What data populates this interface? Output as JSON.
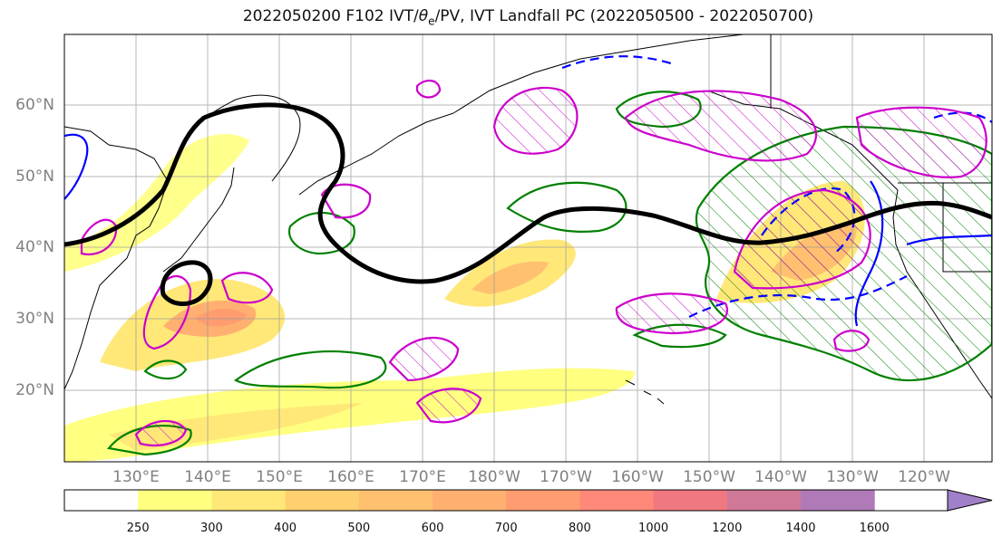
{
  "title_main": "2022050200 F102 IVT/",
  "title_theta": "θ",
  "title_sub": "e",
  "title_rest": "/PV, IVT Landfall PC (2022050500 - 2022050700)",
  "lat_labels": [
    "60°N",
    "50°N",
    "40°N",
    "30°N",
    "20°N"
  ],
  "lon_labels": [
    "130°E",
    "140°E",
    "150°E",
    "160°E",
    "170°E",
    "180°W",
    "170°W",
    "160°W",
    "150°W",
    "140°W",
    "130°W",
    "120°W"
  ],
  "colorbar": {
    "levels": [
      "250",
      "300",
      "400",
      "500",
      "600",
      "700",
      "800",
      "1000",
      "1200",
      "1400",
      "1600"
    ],
    "colors": [
      "#ffffff",
      "#ffff80",
      "#ffe878",
      "#ffd070",
      "#ffc070",
      "#ffb070",
      "#ff9c70",
      "#ff8878",
      "#f07880",
      "#d07898",
      "#b07ab8",
      "#a080c8"
    ],
    "extend": "max"
  },
  "colors": {
    "jet_contour": "#000000",
    "theta_e_positive": "#0000ff",
    "theta_e_negative": "#0000ff",
    "pv": "#cc00cc",
    "pc_contour": "#008000",
    "coastline": "#000000",
    "gridline": "#999999"
  }
}
